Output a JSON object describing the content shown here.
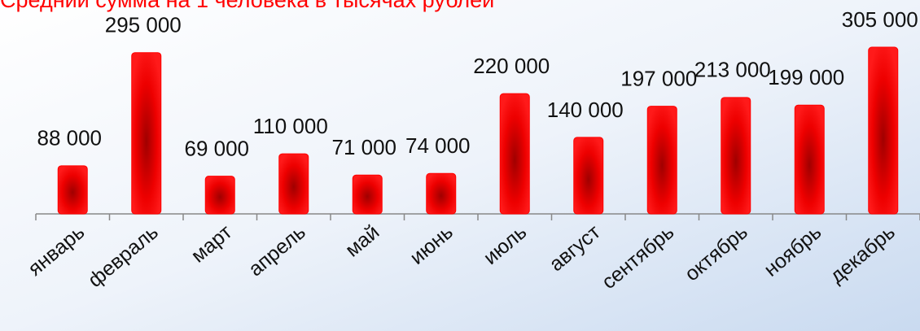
{
  "chart_data": {
    "type": "bar",
    "title": "Средний сумма на 1 человека в тысячах рублей",
    "categories": [
      "январь",
      "февраль",
      "март",
      "апрель",
      "май",
      "июнь",
      "июль",
      "август",
      "сентябрь",
      "октябрь",
      "ноябрь",
      "декабрь"
    ],
    "values": [
      88000,
      295000,
      69000,
      110000,
      71000,
      74000,
      220000,
      140000,
      197000,
      213000,
      199000,
      305000
    ],
    "value_labels": [
      "88 000",
      "295 000",
      "69 000",
      "110 000",
      "71 000",
      "74 000",
      "220 000",
      "140 000",
      "197 000",
      "213 000",
      "199 000",
      "305 000"
    ],
    "color": "#ff0000"
  }
}
